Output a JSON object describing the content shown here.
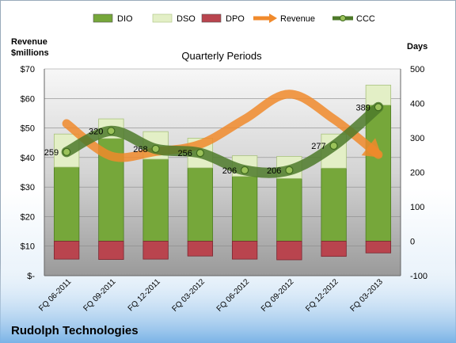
{
  "chart_data": {
    "type": "bar",
    "title": "Quarterly Periods",
    "company": "Rudolph Technologies",
    "categories": [
      "FQ 06-2011",
      "FQ 09-2011",
      "FQ 12-2011",
      "FQ 03-2012",
      "FQ 06-2012",
      "FQ 09-2012",
      "FQ 12-2012",
      "FQ 03-2013"
    ],
    "ylabel_left": "Revenue\n$millions",
    "ylabel_right": "Days",
    "ylim_left": [
      0,
      70
    ],
    "yticks_left": [
      "$-",
      "$10",
      "$20",
      "$30",
      "$40",
      "$50",
      "$60",
      "$70"
    ],
    "ylim_right": [
      -100,
      500
    ],
    "yticks_right": [
      "-100",
      "0",
      "100",
      "200",
      "300",
      "400",
      "500"
    ],
    "legend_position": "top",
    "grid": true,
    "series": [
      {
        "name": "DIO",
        "kind": "bar",
        "axis": "right",
        "color": "#76a73a",
        "values": [
          215,
          298,
          238,
          213,
          188,
          182,
          212,
          395
        ]
      },
      {
        "name": "DSO",
        "kind": "bar",
        "axis": "right",
        "color": "#e3efc6",
        "values": [
          96,
          57,
          80,
          86,
          60,
          64,
          99,
          58
        ]
      },
      {
        "name": "DPO",
        "kind": "bar",
        "axis": "right",
        "color": "#b9444e",
        "values": [
          -52,
          -53,
          -52,
          -43,
          -52,
          -54,
          -44,
          -34
        ]
      },
      {
        "name": "Revenue",
        "kind": "line",
        "axis": "left",
        "color": "#f08a2c",
        "values": [
          51.5,
          40.5,
          42.0,
          44.5,
          53.0,
          61.5,
          53.0,
          41.0
        ]
      },
      {
        "name": "CCC",
        "kind": "line",
        "axis": "right",
        "color": "#4e7a2a",
        "values": [
          259,
          320,
          268,
          256,
          206,
          206,
          277,
          389
        ],
        "labels": [
          "259",
          "320",
          "268",
          "256",
          "206",
          "206",
          "277",
          "389"
        ]
      }
    ]
  }
}
